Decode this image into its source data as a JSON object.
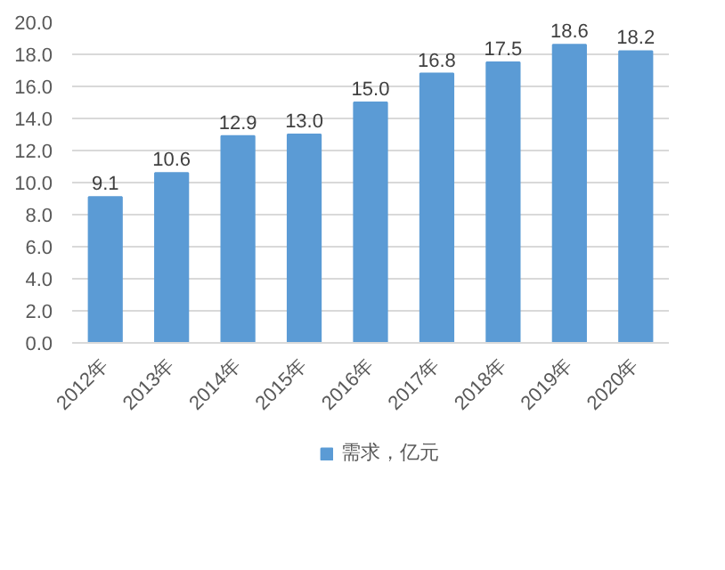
{
  "chart_data": {
    "type": "bar",
    "categories": [
      "2012年",
      "2013年",
      "2014年",
      "2015年",
      "2016年",
      "2017年",
      "2018年",
      "2019年",
      "2020年"
    ],
    "series": [
      {
        "name": "需求，亿元",
        "color": "#5b9bd5",
        "values": [
          9.1,
          10.6,
          12.9,
          13.0,
          15.0,
          16.8,
          17.5,
          18.6,
          18.2
        ],
        "value_labels": [
          "9.1",
          "10.6",
          "12.9",
          "13.0",
          "15.0",
          "16.8",
          "17.5",
          "18.6",
          "18.2"
        ]
      }
    ],
    "ylim": [
      0,
      20
    ],
    "yticks": [
      {
        "value": 0,
        "label": "0.0"
      },
      {
        "value": 2,
        "label": "2.0"
      },
      {
        "value": 4,
        "label": "4.0"
      },
      {
        "value": 6,
        "label": "6.0"
      },
      {
        "value": 8,
        "label": "8.0"
      },
      {
        "value": 10,
        "label": "10.0"
      },
      {
        "value": 12,
        "label": "12.0"
      },
      {
        "value": 14,
        "label": "14.0"
      },
      {
        "value": 16,
        "label": "16.0"
      },
      {
        "value": 18,
        "label": "18.0"
      },
      {
        "value": 20,
        "label": "20.0"
      }
    ],
    "grid": "y",
    "legend": "bottom"
  }
}
